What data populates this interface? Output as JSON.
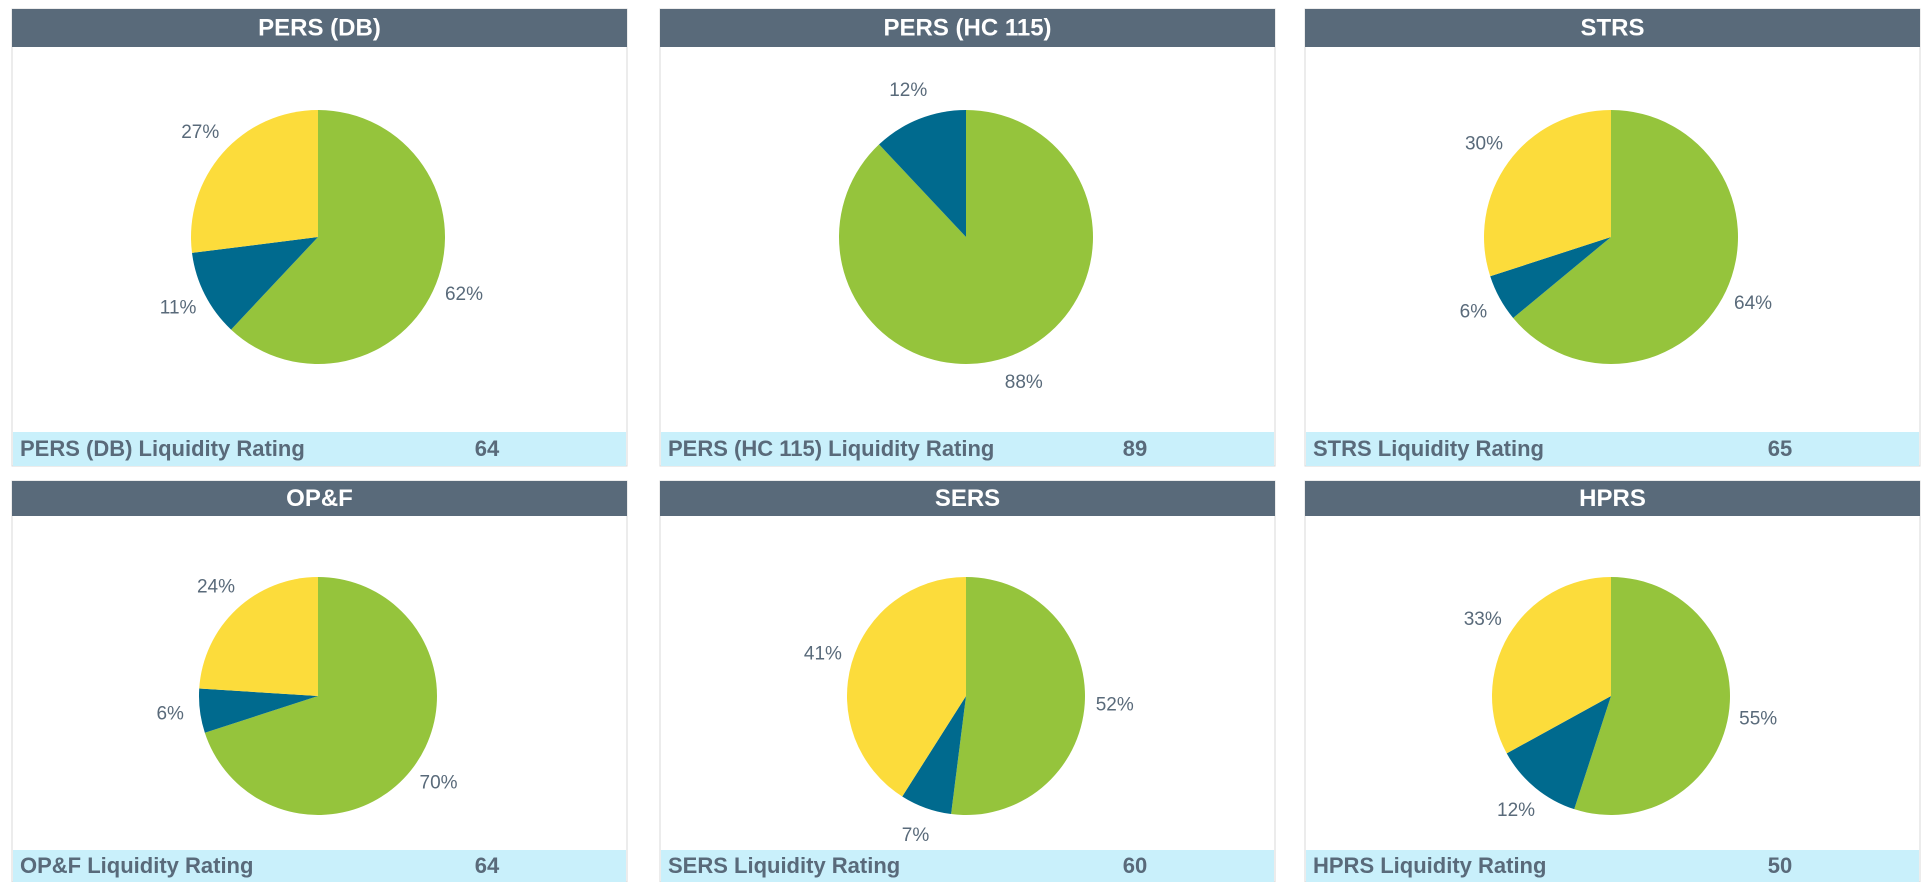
{
  "chart_data": [
    {
      "type": "pie",
      "title": "PERS (DB)",
      "values": [
        62,
        11,
        27
      ],
      "value_labels": [
        "62%",
        "11%",
        "27%"
      ],
      "colors": [
        "#95c43c",
        "#006a8e",
        "#fcdc3b"
      ],
      "rating_label": "PERS (DB) Liquidity Rating",
      "rating": 64
    },
    {
      "type": "pie",
      "title": "PERS (HC 115)",
      "values": [
        88,
        12
      ],
      "value_labels": [
        "88%",
        "12%"
      ],
      "colors": [
        "#95c43c",
        "#006a8e"
      ],
      "rating_label": "PERS (HC 115) Liquidity Rating",
      "rating": 89
    },
    {
      "type": "pie",
      "title": "STRS",
      "values": [
        64,
        6,
        30
      ],
      "value_labels": [
        "64%",
        "6%",
        "30%"
      ],
      "colors": [
        "#95c43c",
        "#006a8e",
        "#fcdc3b"
      ],
      "rating_label": "STRS Liquidity Rating",
      "rating": 65
    },
    {
      "type": "pie",
      "title": "OP&F",
      "values": [
        70,
        6,
        24
      ],
      "value_labels": [
        "70%",
        "6%",
        "24%"
      ],
      "colors": [
        "#95c43c",
        "#006a8e",
        "#fcdc3b"
      ],
      "rating_label": "OP&F Liquidity Rating",
      "rating": 64
    },
    {
      "type": "pie",
      "title": "SERS",
      "values": [
        52,
        7,
        41
      ],
      "value_labels": [
        "52%",
        "7%",
        "41%"
      ],
      "colors": [
        "#95c43c",
        "#006a8e",
        "#fcdc3b"
      ],
      "rating_label": "SERS Liquidity Rating",
      "rating": 60
    },
    {
      "type": "pie",
      "title": "HPRS",
      "values": [
        55,
        12,
        33
      ],
      "value_labels": [
        "55%",
        "12%",
        "33%"
      ],
      "colors": [
        "#95c43c",
        "#006a8e",
        "#fcdc3b"
      ],
      "rating_label": "HPRS Liquidity Rating",
      "rating": 50
    }
  ]
}
